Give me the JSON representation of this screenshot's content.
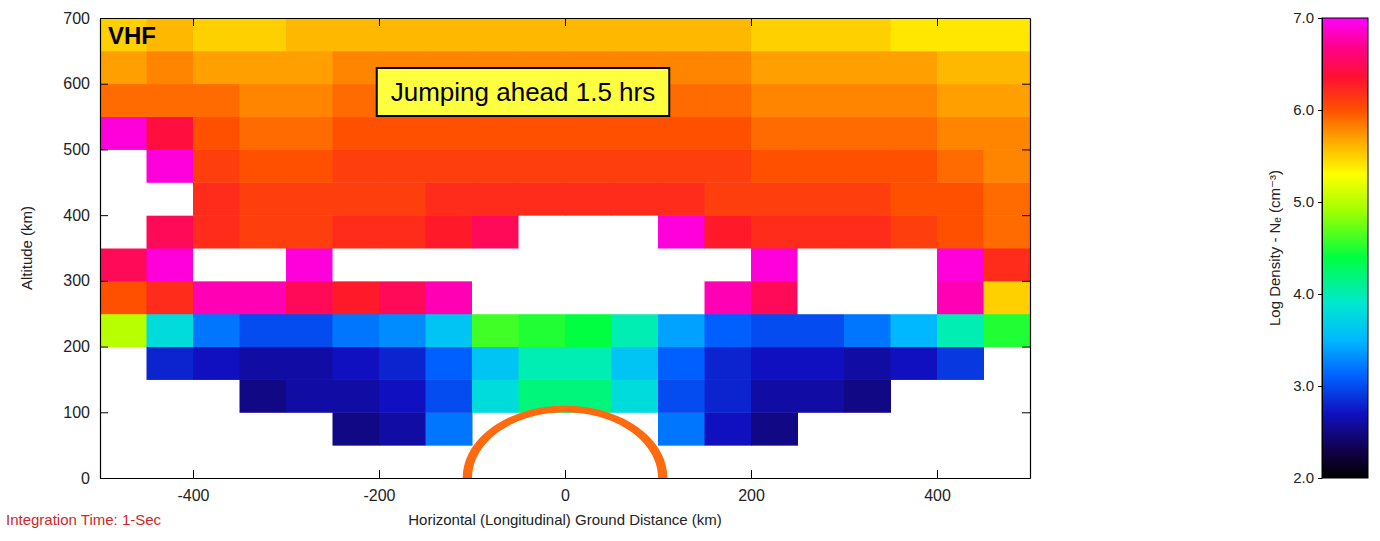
{
  "chart_data": {
    "type": "heatmap",
    "x_label": "Horizontal (Longitudinal) Ground Distance (km)",
    "y_label": "Altitude (km)",
    "annotations": [
      "VHF",
      "Jumping ahead 1.5 hrs",
      "Integration Time: 1-Sec"
    ],
    "xlim": [
      -500,
      500
    ],
    "ylim": [
      0,
      700
    ],
    "xticks": [
      -400,
      -200,
      0,
      200,
      400
    ],
    "yticks": [
      0,
      100,
      200,
      300,
      400,
      500,
      600,
      700
    ],
    "x": [
      -475,
      -425,
      -375,
      -325,
      -275,
      -225,
      -175,
      -125,
      -75,
      -25,
      25,
      75,
      125,
      175,
      225,
      275,
      325,
      375,
      425,
      475
    ],
    "y": [
      25,
      75,
      125,
      175,
      225,
      275,
      325,
      375,
      425,
      475,
      525,
      575,
      625,
      675
    ],
    "values": [
      [
        null,
        null,
        null,
        null,
        null,
        null,
        null,
        null,
        null,
        null,
        null,
        null,
        null,
        null,
        null,
        null,
        null,
        null,
        null,
        null
      ],
      [
        null,
        null,
        null,
        null,
        null,
        2.5,
        2.6,
        3.2,
        null,
        null,
        null,
        null,
        3.2,
        2.7,
        2.5,
        null,
        null,
        null,
        null,
        null
      ],
      [
        null,
        null,
        null,
        2.5,
        2.6,
        2.6,
        2.7,
        3.0,
        3.8,
        4.2,
        4.2,
        3.8,
        3.0,
        2.8,
        2.6,
        2.6,
        2.5,
        null,
        null,
        null
      ],
      [
        null,
        2.8,
        2.7,
        2.6,
        2.6,
        2.7,
        2.8,
        3.1,
        3.6,
        4.0,
        4.0,
        3.6,
        3.1,
        2.8,
        2.7,
        2.7,
        2.6,
        2.7,
        2.9,
        null
      ],
      [
        5.0,
        3.8,
        3.2,
        3.0,
        3.0,
        3.2,
        3.3,
        3.6,
        4.6,
        4.5,
        4.4,
        4.0,
        3.4,
        3.1,
        3.0,
        3.0,
        3.2,
        3.5,
        4.0,
        4.5
      ],
      [
        6.0,
        6.2,
        6.8,
        6.8,
        6.5,
        6.3,
        6.5,
        6.8,
        7.5,
        7.5,
        7.5,
        7.5,
        7.5,
        6.8,
        6.5,
        7.5,
        7.5,
        7.5,
        6.8,
        5.5
      ],
      [
        6.5,
        6.9,
        7.5,
        7.5,
        6.9,
        7.5,
        7.5,
        7.5,
        7.5,
        7.5,
        7.5,
        7.5,
        7.5,
        7.5,
        6.9,
        7.5,
        7.5,
        7.5,
        6.9,
        6.2
      ],
      [
        7.5,
        6.5,
        6.2,
        6.1,
        6.1,
        6.2,
        6.2,
        6.3,
        6.5,
        7.5,
        7.5,
        7.5,
        6.9,
        6.3,
        6.2,
        6.2,
        6.2,
        6.1,
        6.0,
        5.9
      ],
      [
        7.5,
        7.5,
        6.2,
        6.1,
        6.1,
        6.1,
        6.1,
        6.2,
        6.2,
        6.2,
        6.2,
        6.2,
        6.2,
        6.1,
        6.1,
        6.1,
        6.1,
        6.0,
        6.0,
        5.9
      ],
      [
        7.5,
        6.9,
        6.1,
        6.0,
        6.0,
        6.1,
        6.1,
        6.1,
        6.1,
        6.1,
        6.1,
        6.1,
        6.1,
        6.1,
        6.0,
        6.0,
        6.0,
        6.0,
        5.9,
        5.8
      ],
      [
        6.9,
        6.4,
        6.0,
        5.9,
        5.9,
        6.0,
        6.0,
        6.0,
        6.0,
        6.0,
        6.0,
        6.0,
        6.0,
        6.0,
        5.9,
        5.9,
        5.9,
        5.9,
        5.8,
        5.8
      ],
      [
        5.9,
        5.9,
        5.9,
        5.8,
        5.8,
        5.9,
        5.9,
        5.9,
        5.9,
        5.9,
        5.9,
        5.9,
        5.9,
        5.9,
        5.8,
        5.8,
        5.8,
        5.8,
        5.7,
        5.7
      ],
      [
        5.7,
        5.8,
        5.7,
        5.7,
        5.7,
        5.8,
        5.8,
        5.8,
        5.8,
        5.8,
        5.8,
        5.8,
        5.8,
        5.8,
        5.7,
        5.7,
        5.7,
        5.7,
        5.6,
        5.6
      ],
      [
        5.5,
        5.6,
        5.5,
        5.5,
        5.6,
        5.6,
        5.6,
        5.6,
        5.6,
        5.6,
        5.6,
        5.6,
        5.6,
        5.6,
        5.5,
        5.5,
        5.5,
        5.4,
        5.4,
        5.4
      ]
    ],
    "colorbar_label": "Log Density - Nₑ (cm⁻³)",
    "colorbar_range": [
      2,
      7
    ],
    "colorbar_ticks": [
      {
        "value": 2,
        "label": "2.0"
      },
      {
        "value": 3,
        "label": "3.0"
      },
      {
        "value": 4,
        "label": "4.0"
      },
      {
        "value": 5,
        "label": "5.0"
      },
      {
        "value": 6,
        "label": "6.0"
      },
      {
        "value": 7,
        "label": "7.0"
      }
    ]
  }
}
